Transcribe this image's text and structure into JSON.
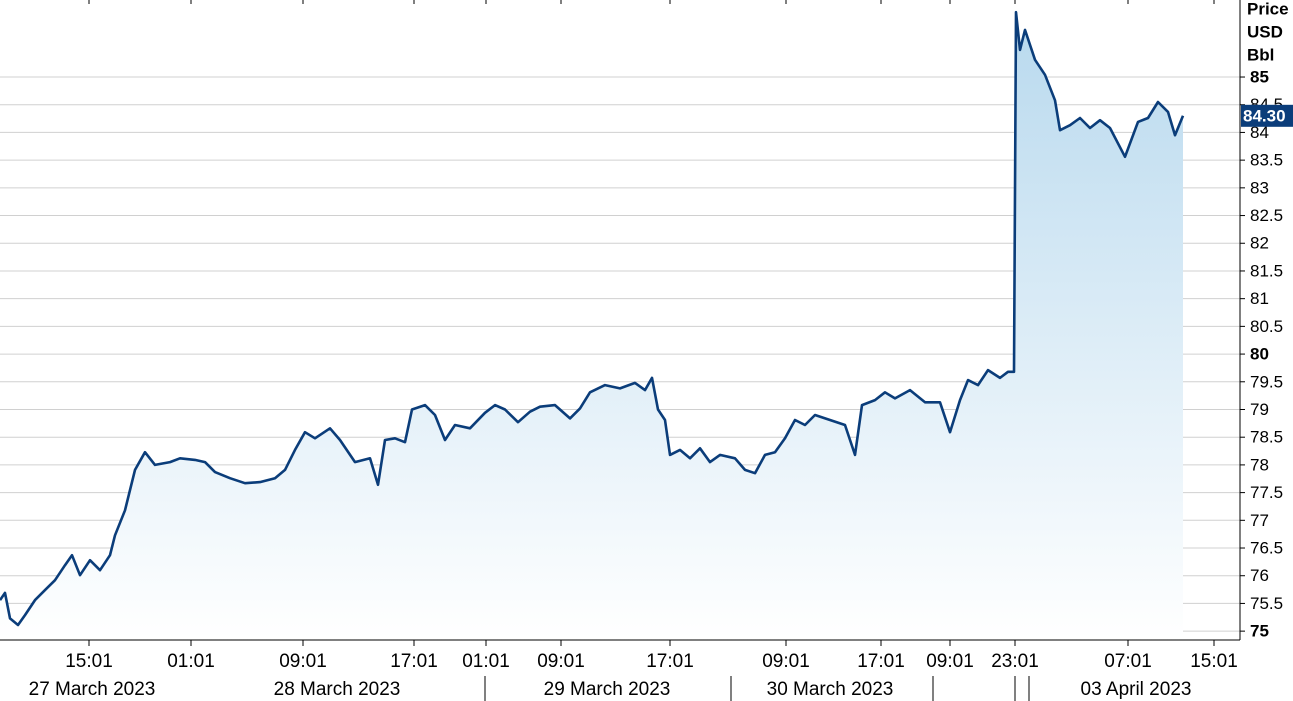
{
  "chart_data": {
    "type": "area",
    "axis_title": [
      "Price",
      "USD",
      "Bbl"
    ],
    "color": "#0b3d7a",
    "fill_top": "#b8d9ee",
    "grid": true,
    "ylim": [
      74.84,
      86.39
    ],
    "yticks": [
      75,
      75.5,
      76,
      76.5,
      77,
      77.5,
      78,
      78.5,
      79,
      79.5,
      80,
      80.5,
      81,
      81.5,
      82,
      82.5,
      83,
      83.5,
      84,
      84.5,
      85
    ],
    "xlim": [
      0,
      124
    ],
    "xticks": [
      {
        "value": 8.9,
        "label": "15:01"
      },
      {
        "value": 19.1,
        "label": "01:01"
      },
      {
        "value": 30.3,
        "label": "09:01"
      },
      {
        "value": 41.4,
        "label": "17:01"
      },
      {
        "value": 48.6,
        "label": "01:01"
      },
      {
        "value": 56.1,
        "label": "09:01"
      },
      {
        "value": 67,
        "label": "17:01"
      },
      {
        "value": 78.6,
        "label": "09:01"
      },
      {
        "value": 88.1,
        "label": "17:01"
      },
      {
        "value": 95,
        "label": "09:01"
      },
      {
        "value": 101.5,
        "label": "23:01"
      },
      {
        "value": 112.8,
        "label": "07:01"
      },
      {
        "value": 121.4,
        "label": "15:01"
      }
    ],
    "date_labels": [
      {
        "value": 9.2,
        "label": "27 March 2023"
      },
      {
        "value": 33.7,
        "label": "28 March 2023"
      },
      {
        "value": 60.7,
        "label": "29 March 2023"
      },
      {
        "value": 83,
        "label": "30 March 2023"
      },
      {
        "value": 113.6,
        "label": "03 April 2023"
      }
    ],
    "date_separators": [
      48.5,
      73.1,
      93.3,
      101.5,
      102.9
    ],
    "current_price": {
      "value": 84.3,
      "label": "84.30"
    },
    "x": [
      0,
      0.5,
      1,
      1.8,
      2.5,
      3.5,
      4.5,
      5.5,
      6.5,
      7.2,
      8,
      9,
      10,
      11,
      11.5,
      12.5,
      13.5,
      14.5,
      15.5,
      17,
      18,
      19.5,
      20.5,
      21.5,
      23,
      24.5,
      26,
      27.5,
      28.5,
      29.5,
      30.5,
      31.5,
      33,
      34,
      35.5,
      37,
      37.8,
      38.5,
      39.5,
      40.5,
      41.2,
      42.5,
      43.5,
      44.5,
      45.5,
      47,
      48.5,
      49.5,
      50.5,
      51.8,
      53,
      54,
      55.5,
      57,
      58,
      59,
      60.5,
      62,
      63.5,
      64.5,
      65.2,
      65.8,
      66.5,
      67,
      68,
      69,
      70,
      71,
      72,
      73.5,
      74.5,
      75.5,
      76.5,
      77.5,
      78.5,
      79.5,
      80.5,
      81.5,
      83,
      84.5,
      85.5,
      86.2,
      87.5,
      88.5,
      89.5,
      91,
      92.5,
      94,
      95,
      96,
      96.8,
      97.8,
      98.8,
      100,
      100.8,
      101.4,
      101.6,
      102,
      102.5,
      103.5,
      104.5,
      105.5,
      106,
      107,
      108,
      109,
      110,
      111,
      112.5,
      113.8,
      114.8,
      115.8,
      116.8,
      117.5,
      118.3
    ],
    "values": [
      75.56,
      75.69,
      75.23,
      75.11,
      75.29,
      75.56,
      75.74,
      75.92,
      76.19,
      76.37,
      76.01,
      76.28,
      76.1,
      76.37,
      76.73,
      77.18,
      77.91,
      78.23,
      78,
      78.05,
      78.12,
      78.09,
      78.05,
      77.87,
      77.76,
      77.67,
      77.69,
      77.76,
      77.91,
      78.27,
      78.59,
      78.48,
      78.66,
      78.45,
      78.05,
      78.12,
      77.64,
      78.45,
      78.48,
      78.41,
      79,
      79.08,
      78.9,
      78.45,
      78.72,
      78.66,
      78.94,
      79.08,
      79,
      78.77,
      78.96,
      79.05,
      79.08,
      78.84,
      79.02,
      79.31,
      79.44,
      79.38,
      79.48,
      79.35,
      79.57,
      79,
      78.81,
      78.18,
      78.27,
      78.12,
      78.3,
      78.05,
      78.18,
      78.12,
      77.91,
      77.85,
      78.18,
      78.23,
      78.48,
      78.81,
      78.72,
      78.9,
      78.81,
      78.72,
      78.18,
      79.08,
      79.17,
      79.31,
      79.2,
      79.35,
      79.13,
      79.13,
      78.59,
      79.17,
      79.53,
      79.44,
      79.71,
      79.57,
      79.68,
      79.68,
      86.17,
      85.49,
      85.85,
      85.31,
      85.04,
      84.58,
      84.04,
      84.13,
      84.26,
      84.08,
      84.22,
      84.08,
      83.56,
      84.19,
      84.26,
      84.55,
      84.37,
      83.95,
      84.3
    ]
  }
}
